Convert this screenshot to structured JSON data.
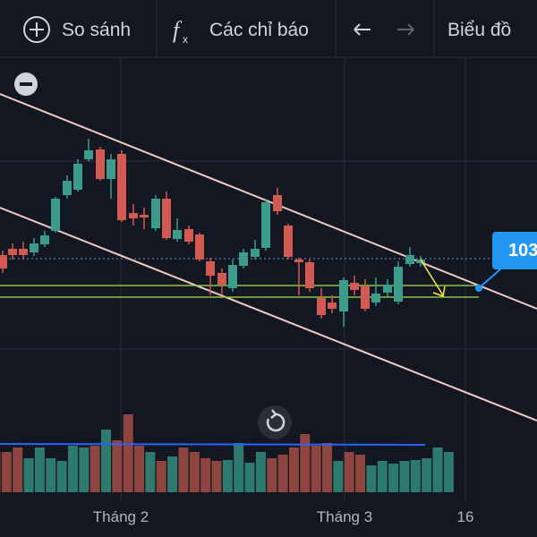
{
  "toolbar": {
    "compare": "So sánh",
    "indicators": "Các chỉ báo",
    "chart_type": "Biểu đồ"
  },
  "price_label": "103",
  "x_axis": {
    "labels": [
      "Tháng 2",
      "Tháng 3",
      "16"
    ]
  }
}
